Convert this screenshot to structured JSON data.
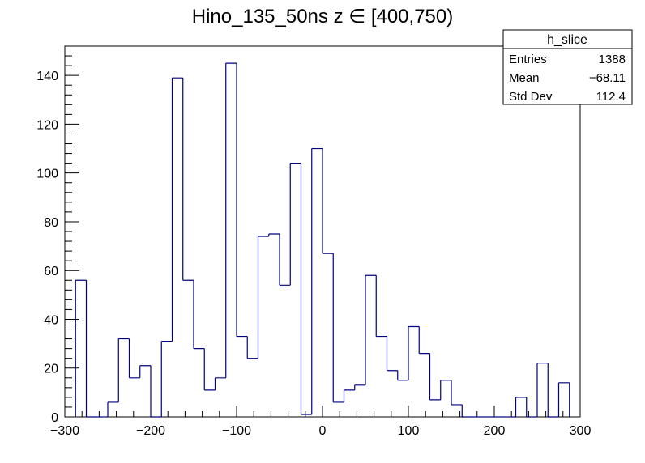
{
  "chart_data": {
    "type": "histogram",
    "title": "Hino_135_50ns z  ∈ [400,750)",
    "xlabel": "",
    "ylabel": "",
    "xlim": [
      -300,
      300
    ],
    "ylim": [
      0,
      152
    ],
    "bin_width": 12.5,
    "x_ticks": [
      -300,
      -200,
      -100,
      0,
      100,
      200,
      300
    ],
    "x_tick_labels": [
      "−300",
      "−200",
      "−100",
      "0",
      "100",
      "200",
      "300"
    ],
    "y_ticks": [
      0,
      20,
      40,
      60,
      80,
      100,
      120,
      140
    ],
    "y_tick_labels": [
      "0",
      "20",
      "40",
      "60",
      "80",
      "100",
      "120",
      "140"
    ],
    "line_color": "#000080",
    "bins_low_edges": [
      -287.5,
      -275,
      -262.5,
      -250,
      -237.5,
      -225,
      -212.5,
      -200,
      -187.5,
      -175,
      -162.5,
      -150,
      -137.5,
      -125,
      -112.5,
      -100,
      -87.5,
      -75,
      -62.5,
      -50,
      -37.5,
      -25,
      -12.5,
      0,
      12.5,
      25,
      37.5,
      50,
      62.5,
      75,
      87.5,
      100,
      112.5,
      125,
      137.5,
      150,
      162.5,
      175,
      187.5,
      200,
      212.5,
      225,
      237.5,
      250,
      262.5,
      275
    ],
    "values": [
      56,
      0,
      0,
      6,
      32,
      16,
      21,
      0,
      31,
      139,
      56,
      28,
      11,
      16,
      145,
      33,
      24,
      74,
      75,
      54,
      104,
      1,
      110,
      67,
      6,
      11,
      13,
      58,
      33,
      19,
      15,
      37,
      26,
      7,
      15,
      5,
      0,
      0,
      0,
      0,
      0,
      8,
      0,
      22,
      0,
      14
    ]
  },
  "stats": {
    "name": "h_slice",
    "rows": [
      {
        "label": "Entries",
        "value": "1388"
      },
      {
        "label": "Mean",
        "value": "−68.11"
      },
      {
        "label": "Std Dev",
        "value": "112.4"
      }
    ]
  }
}
